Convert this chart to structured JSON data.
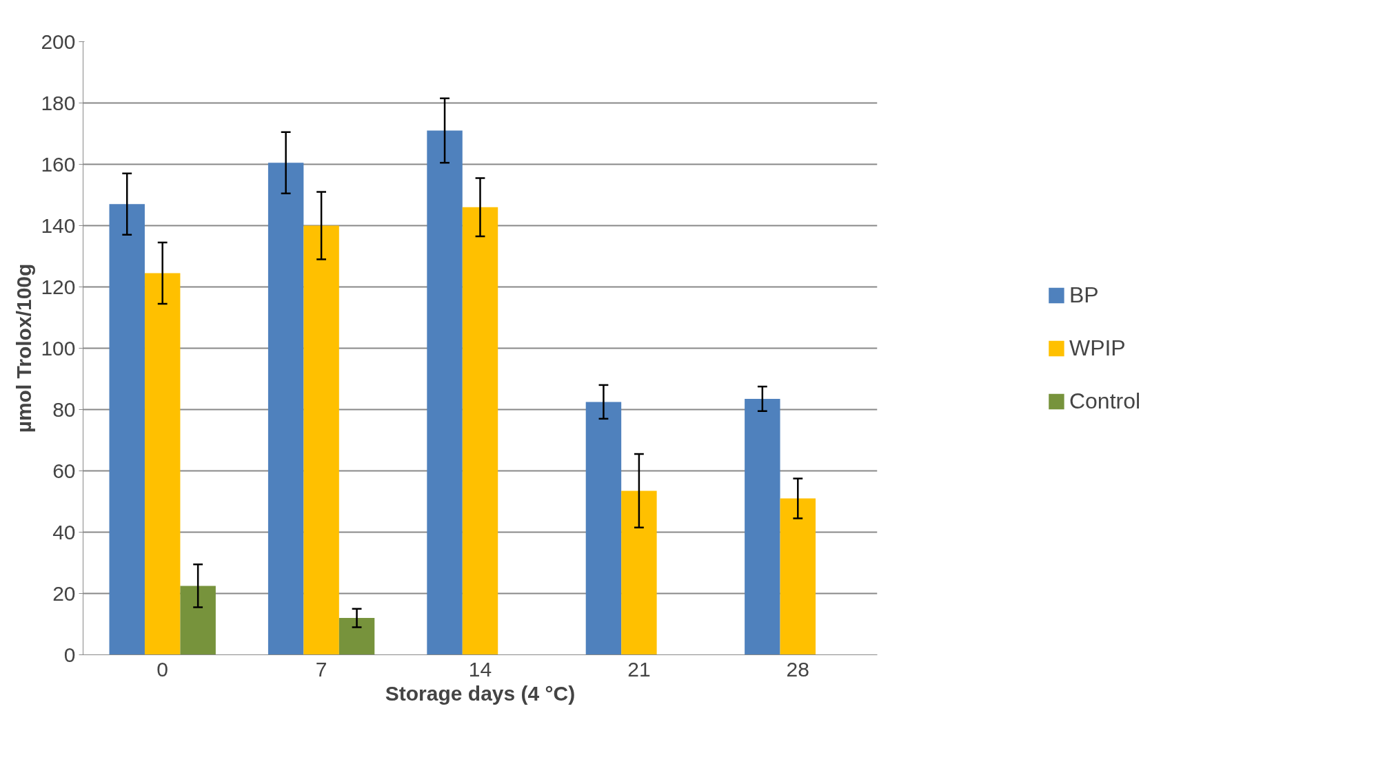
{
  "chart_data": {
    "type": "bar",
    "xlabel": "Storage days (4 °C)",
    "ylabel": "µmol Trolox/100g",
    "categories": [
      "0",
      "7",
      "14",
      "21",
      "28"
    ],
    "series": [
      {
        "name": "BP",
        "color": "#4f81bd",
        "values": [
          147,
          160.5,
          171,
          82.5,
          83.5
        ],
        "errors": [
          10,
          10,
          10.5,
          5.5,
          4
        ]
      },
      {
        "name": "WPIP",
        "color": "#ffc000",
        "values": [
          124.5,
          140,
          146,
          53.5,
          51
        ],
        "errors": [
          10,
          11,
          9.5,
          12,
          6.5
        ]
      },
      {
        "name": "Control",
        "color": "#77933c",
        "values": [
          22.5,
          12,
          null,
          null,
          null
        ],
        "errors": [
          7,
          3,
          null,
          null,
          null
        ]
      }
    ],
    "ylim": [
      0,
      200
    ],
    "yticks": [
      0,
      20,
      40,
      60,
      80,
      100,
      120,
      140,
      160,
      180,
      200
    ],
    "grid": "y",
    "legend": "right"
  }
}
